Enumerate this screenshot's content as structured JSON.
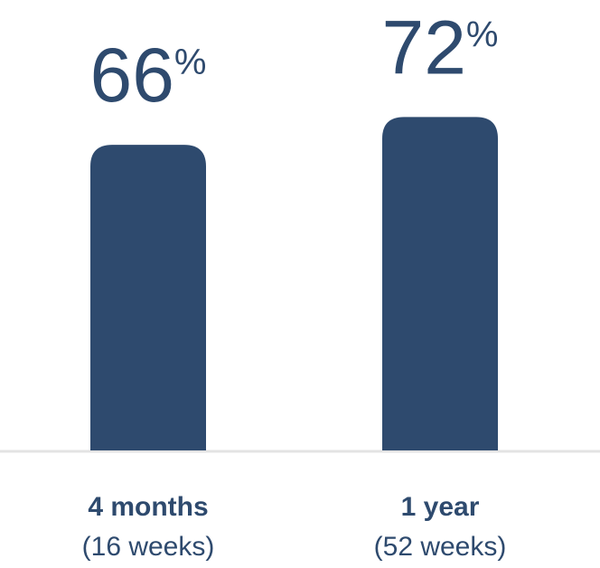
{
  "chart_data": {
    "type": "bar",
    "categories": [
      "4 months",
      "1 year"
    ],
    "category_notes": [
      "(16 weeks)",
      "(52 weeks)"
    ],
    "values": [
      66,
      72
    ],
    "value_labels": [
      "66%",
      "72%"
    ],
    "color": "#2e4a6e",
    "ylim": [
      0,
      100
    ]
  }
}
